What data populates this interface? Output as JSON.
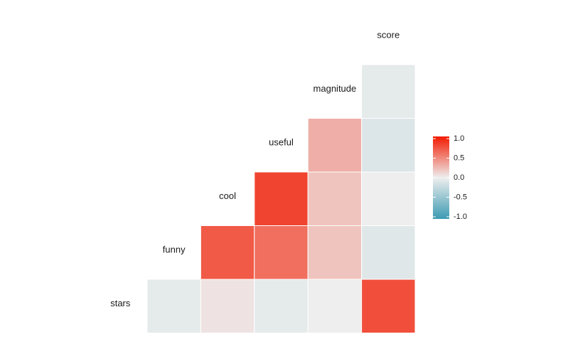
{
  "chart_data": {
    "type": "heatmap",
    "variables": [
      "stars",
      "funny",
      "cool",
      "useful",
      "magnitude",
      "score"
    ],
    "values": [
      [
        -0.05,
        0.05,
        -0.05,
        0.0,
        0.75
      ],
      [
        0.7,
        0.6,
        0.2,
        -0.08
      ],
      [
        0.8,
        0.2,
        0.0
      ],
      [
        0.3,
        -0.1
      ],
      [
        -0.05
      ]
    ],
    "colors": {
      "low": "#3B9AB2",
      "mid": "#EEEEEE",
      "high": "#F21A00"
    },
    "legend_lim": [
      -1,
      1
    ],
    "legend_ticks": [
      {
        "value": 1,
        "label": "1.0"
      },
      {
        "value": 0.5,
        "label": "0.5"
      },
      {
        "value": 0,
        "label": "0.0"
      },
      {
        "value": -0.5,
        "label": "-0.5"
      },
      {
        "value": -1,
        "label": "-1.0"
      }
    ]
  }
}
